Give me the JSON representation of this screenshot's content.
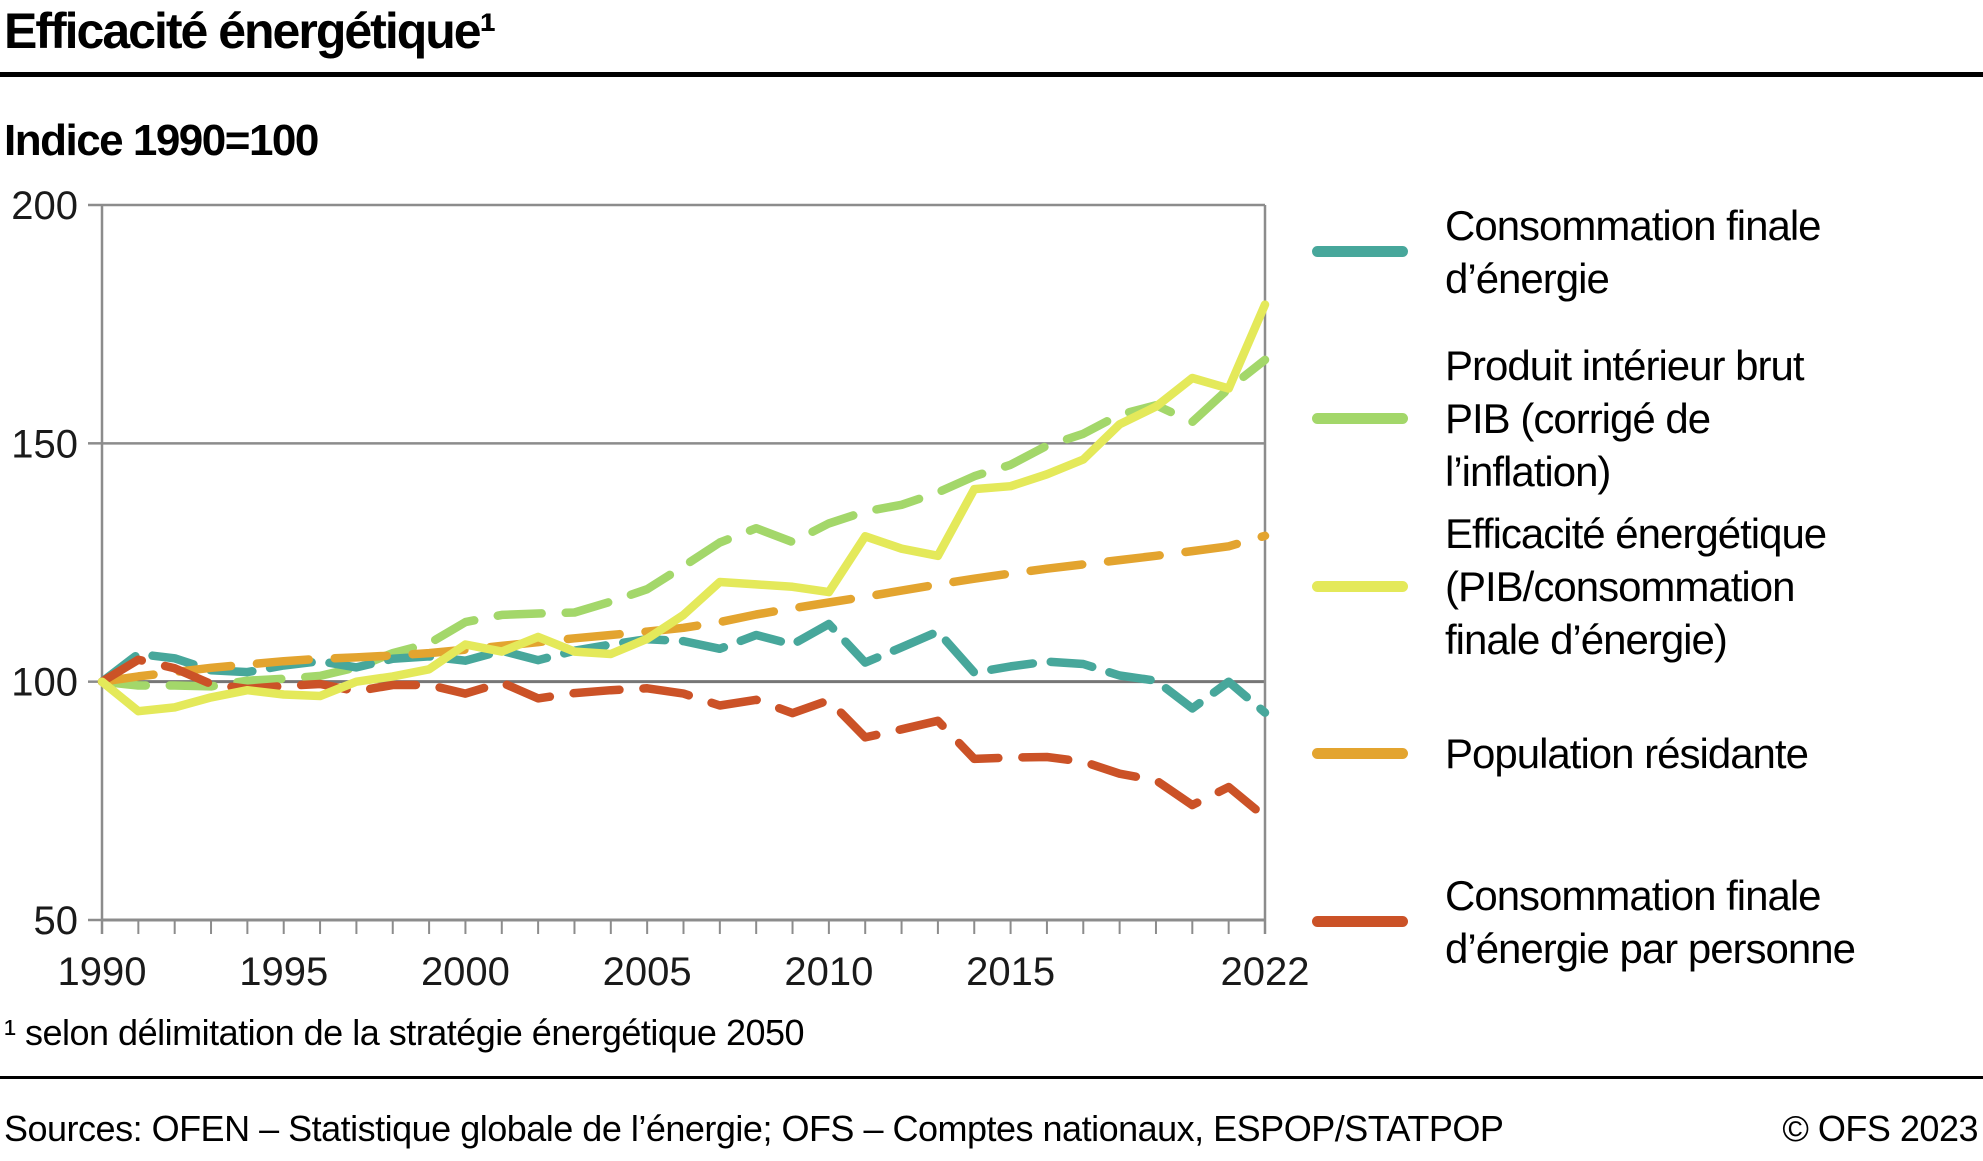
{
  "header": {
    "title": "Efficacité énergétique¹",
    "subtitle": "Indice 1990=100"
  },
  "legend": {
    "items": [
      {
        "lines": [
          "Consommation finale",
          "d’énergie"
        ]
      },
      {
        "lines": [
          "Produit intérieur brut",
          "PIB (corrigé de",
          "l’inflation)"
        ]
      },
      {
        "lines": [
          "Efficacité énergétique",
          "(PIB/consommation",
          "finale d’énergie)"
        ]
      },
      {
        "lines": [
          "Population résidante"
        ]
      },
      {
        "lines": [
          "Consommation finale",
          "d’énergie par personne"
        ]
      }
    ]
  },
  "footer": {
    "footnote": "¹ selon délimitation de la stratégie énergétique 2050",
    "sources": "Sources: OFEN – Statistique globale de l’énergie; OFS – Comptes nationaux, ESPOP/STATPOP",
    "copyright": "© OFS 2023"
  },
  "chart_data": {
    "type": "line",
    "title": "Efficacité énergétique",
    "subtitle": "Indice 1990=100",
    "x": [
      1990,
      1991,
      1992,
      1993,
      1994,
      1995,
      1996,
      1997,
      1998,
      1999,
      2000,
      2001,
      2002,
      2003,
      2004,
      2005,
      2006,
      2007,
      2008,
      2009,
      2010,
      2011,
      2012,
      2013,
      2014,
      2015,
      2016,
      2017,
      2018,
      2019,
      2020,
      2021,
      2022
    ],
    "x_tick_labels": [
      1990,
      1995,
      2000,
      2005,
      2010,
      2015,
      2022
    ],
    "y_ticks": [
      50,
      100,
      150,
      200
    ],
    "ylim": [
      50,
      200
    ],
    "grid": "horizontal",
    "legend_position": "right",
    "colors": {
      "grid": "#8C8C8C",
      "grid_emphasis": "#767676",
      "axis_text": "#1a1a1a"
    },
    "series": [
      {
        "name": "Consommation finale d’énergie",
        "color": "#47A79B",
        "dash": "42 18",
        "values": [
          100,
          105.8,
          104.9,
          102.4,
          102.0,
          103.4,
          104.3,
          103.0,
          104.8,
          105.3,
          104.4,
          106.5,
          104.5,
          106.5,
          107.8,
          108.9,
          108.5,
          106.9,
          109.8,
          107.8,
          112.1,
          104.0,
          107.2,
          110.5,
          101.9,
          103.2,
          104.2,
          103.7,
          101.3,
          100.2,
          94.4,
          100.0,
          93.5
        ]
      },
      {
        "name": "Produit intérieur brut PIB (corrigé de l’inflation)",
        "color": "#A3D76A",
        "dash": "44 24",
        "values": [
          100,
          99.2,
          99.2,
          99.0,
          100.2,
          100.6,
          101.2,
          103.0,
          106.0,
          108.0,
          112.5,
          114.0,
          114.3,
          114.5,
          116.8,
          119.4,
          124.2,
          129.2,
          132.2,
          129.3,
          133.2,
          135.7,
          137.1,
          139.7,
          143.1,
          145.5,
          149.5,
          152.0,
          156.0,
          158.0,
          154.5,
          161.5,
          167.5
        ]
      },
      {
        "name": "Efficacité énergétique (PIB/consommation finale d’énergie)",
        "color": "#E4E95A",
        "dash": null,
        "values": [
          100,
          93.8,
          94.6,
          96.7,
          98.2,
          97.3,
          97.0,
          100.0,
          101.1,
          102.6,
          107.8,
          106.3,
          109.4,
          106.3,
          105.8,
          109.0,
          114.0,
          120.9,
          120.4,
          119.9,
          118.8,
          130.5,
          127.9,
          126.4,
          140.4,
          141.0,
          143.5,
          146.6,
          154.0,
          157.7,
          163.7,
          161.5,
          179.1
        ]
      },
      {
        "name": "Population résidante",
        "color": "#E3A42F",
        "dash": "52 26",
        "values": [
          100,
          101.1,
          102.0,
          102.9,
          103.6,
          104.3,
          104.8,
          105.1,
          105.5,
          106.0,
          106.7,
          107.5,
          108.3,
          109.1,
          109.8,
          110.5,
          111.3,
          112.5,
          114.1,
          115.4,
          116.6,
          117.8,
          119.1,
          120.4,
          121.6,
          122.7,
          123.7,
          124.6,
          125.5,
          126.4,
          127.4,
          128.4,
          130.6
        ]
      },
      {
        "name": "Consommation finale d’énergie par personne",
        "color": "#CB5227",
        "dash": "46 24",
        "values": [
          100,
          104.6,
          102.8,
          99.5,
          98.5,
          99.1,
          99.5,
          98.0,
          99.3,
          99.3,
          97.5,
          99.8,
          96.5,
          97.6,
          98.2,
          98.6,
          97.5,
          95.0,
          96.2,
          93.4,
          96.1,
          88.3,
          90.0,
          91.8,
          83.8,
          84.1,
          84.2,
          83.2,
          80.7,
          79.3,
          74.1,
          77.9,
          71.6
        ]
      }
    ]
  }
}
